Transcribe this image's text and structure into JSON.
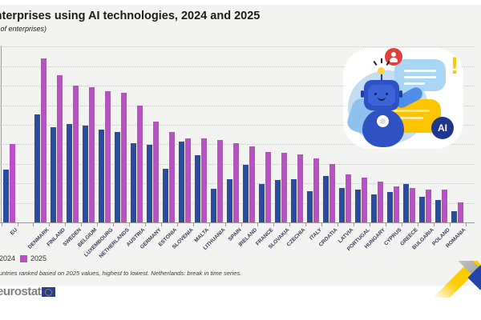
{
  "header": {
    "title": "Enterprises using AI technologies, 2024 and 2025",
    "subtitle": "(% of enterprises)"
  },
  "legend": [
    {
      "label": "2024",
      "color": "#2a4ba0"
    },
    {
      "label": "2025",
      "color": "#bb4fc5"
    }
  ],
  "footnote": "Countries ranked based on 2025 values, highest to lowest. Netherlands: break in time series.",
  "branding": {
    "logo_text": "eurostat"
  },
  "illustration": {
    "ai_badge": "AI",
    "exclamation": "!"
  },
  "chart_data": {
    "type": "bar",
    "title": "Enterprises using AI technologies, 2024 and 2025",
    "ylabel": "% of enterprises",
    "xlabel": "",
    "ylim": [
      0,
      45
    ],
    "gridline_interval": 5,
    "grid": true,
    "legend_position": "bottom-left",
    "categories": [
      "EU",
      "Denmark",
      "Finland",
      "Sweden",
      "Belgium",
      "Luxembourg",
      "Netherlands",
      "Austria",
      "Germany",
      "Estonia",
      "Slovenia",
      "Malta",
      "Lithuania",
      "Spain",
      "Ireland",
      "France",
      "Slovakia",
      "Czechia",
      "Italy",
      "Croatia",
      "Latvia",
      "Portugal",
      "Hungary",
      "Cyprus",
      "Greece",
      "Bulgaria",
      "Poland",
      "Romania"
    ],
    "series": [
      {
        "name": "2024",
        "color": "#2a4ba0",
        "values": [
          13.5,
          27.6,
          24.4,
          25.2,
          24.7,
          23.7,
          23.2,
          20.2,
          19.8,
          13.8,
          20.7,
          17.2,
          8.7,
          11.1,
          14.7,
          9.9,
          10.8,
          11.0,
          8.0,
          11.8,
          8.9,
          8.5,
          7.2,
          7.8,
          9.8,
          6.5,
          5.8,
          2.8
        ]
      },
      {
        "name": "2025",
        "color": "#bb4fc5",
        "values": [
          20.0,
          42.1,
          37.8,
          35.0,
          34.6,
          33.6,
          33.1,
          29.9,
          25.9,
          23.2,
          21.5,
          21.5,
          21.2,
          20.2,
          19.5,
          18.1,
          17.8,
          17.4,
          16.4,
          15.0,
          12.3,
          11.5,
          10.4,
          9.2,
          8.8,
          8.4,
          8.4,
          5.1
        ]
      }
    ]
  }
}
